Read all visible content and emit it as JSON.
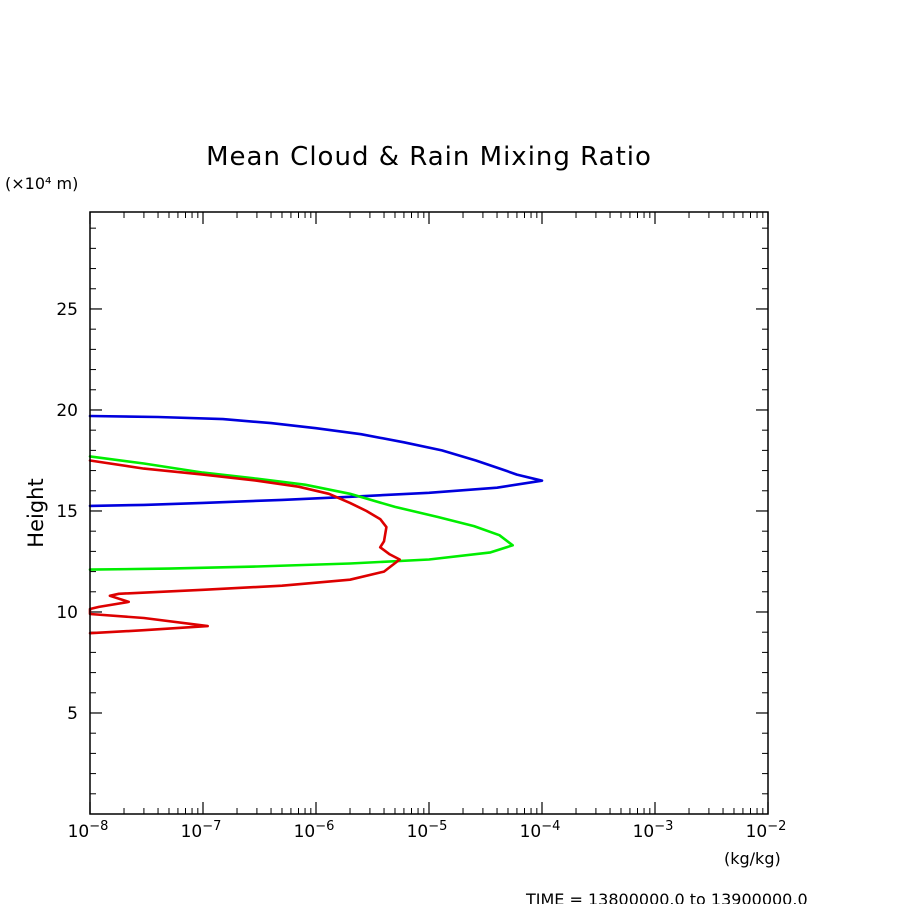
{
  "chart_data": {
    "type": "line",
    "title": "Mean Cloud & Rain Mixing Ratio",
    "ylabel": "Height",
    "y_unit_label": "(×10⁴ m)",
    "x_unit_label": "(kg/kg)",
    "footer": "TIME = 13800000.0 to 13900000.0",
    "x_scale": "log",
    "xlim": [
      1e-08,
      0.01
    ],
    "ylim": [
      0,
      29.8
    ],
    "x_ticks": [
      {
        "value": 1e-08,
        "exp": "−8"
      },
      {
        "value": 1e-07,
        "exp": "−7"
      },
      {
        "value": 1e-06,
        "exp": "−6"
      },
      {
        "value": 1e-05,
        "exp": "−5"
      },
      {
        "value": 0.0001,
        "exp": "−4"
      },
      {
        "value": 0.001,
        "exp": "−3"
      },
      {
        "value": 0.01,
        "exp": "−2"
      }
    ],
    "y_ticks": [
      5,
      10,
      15,
      20,
      25
    ],
    "grid": false,
    "series": [
      {
        "color": "#0000dd",
        "points": [
          [
            1e-08,
            19.7
          ],
          [
            4e-08,
            19.65
          ],
          [
            1.5e-07,
            19.55
          ],
          [
            4e-07,
            19.35
          ],
          [
            1e-06,
            19.1
          ],
          [
            2.5e-06,
            18.8
          ],
          [
            6e-06,
            18.4
          ],
          [
            1.3e-05,
            18.0
          ],
          [
            2.6e-05,
            17.5
          ],
          [
            4.5e-05,
            17.05
          ],
          [
            6e-05,
            16.8
          ],
          [
            0.0001,
            16.5
          ],
          [
            4e-05,
            16.15
          ],
          [
            1e-05,
            15.9
          ],
          [
            2e-06,
            15.7
          ],
          [
            5e-07,
            15.55
          ],
          [
            1e-07,
            15.4
          ],
          [
            3e-08,
            15.3
          ],
          [
            1e-08,
            15.25
          ]
        ]
      },
      {
        "color": "#00ee00",
        "points": [
          [
            1e-08,
            17.7
          ],
          [
            3e-08,
            17.35
          ],
          [
            1e-07,
            16.9
          ],
          [
            3e-07,
            16.6
          ],
          [
            8e-07,
            16.3
          ],
          [
            2e-06,
            15.85
          ],
          [
            5e-06,
            15.2
          ],
          [
            1.2e-05,
            14.7
          ],
          [
            2.5e-05,
            14.25
          ],
          [
            4.2e-05,
            13.8
          ],
          [
            5.5e-05,
            13.3
          ],
          [
            3.5e-05,
            12.95
          ],
          [
            1e-05,
            12.6
          ],
          [
            2e-06,
            12.4
          ],
          [
            3e-07,
            12.25
          ],
          [
            5e-08,
            12.15
          ],
          [
            1e-08,
            12.1
          ]
        ]
      },
      {
        "color": "#dd0000",
        "points": [
          [
            1e-08,
            17.5
          ],
          [
            3e-08,
            17.1
          ],
          [
            1e-07,
            16.8
          ],
          [
            3e-07,
            16.5
          ],
          [
            7e-07,
            16.2
          ],
          [
            1.3e-06,
            15.85
          ],
          [
            2e-06,
            15.4
          ],
          [
            2.8e-06,
            15.0
          ],
          [
            3.7e-06,
            14.6
          ],
          [
            4.2e-06,
            14.2
          ],
          [
            4e-06,
            13.5
          ],
          [
            3.7e-06,
            13.2
          ],
          [
            4.5e-06,
            12.85
          ],
          [
            5.5e-06,
            12.6
          ],
          [
            4e-06,
            12.0
          ],
          [
            2e-06,
            11.6
          ],
          [
            5e-07,
            11.3
          ],
          [
            1e-07,
            11.1
          ],
          [
            1.8e-08,
            10.9
          ],
          [
            1.5e-08,
            10.8
          ],
          [
            2.2e-08,
            10.5
          ],
          [
            1.2e-08,
            10.25
          ],
          [
            1e-08,
            10.15
          ],
          [
            1e-08,
            9.9
          ],
          [
            3e-08,
            9.7
          ],
          [
            1.1e-07,
            9.3
          ],
          [
            3e-08,
            9.1
          ],
          [
            1e-08,
            8.95
          ]
        ]
      }
    ]
  }
}
